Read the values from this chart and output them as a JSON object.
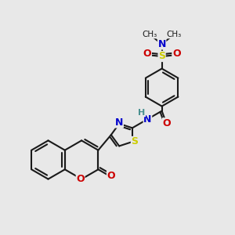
{
  "bg_color": "#e8e8e8",
  "bond_color": "#1a1a1a",
  "N_color": "#0000cc",
  "O_color": "#cc0000",
  "S_color": "#cccc00",
  "H_color": "#4a9090",
  "bond_width": 1.5,
  "font_size": 9,
  "xlim": [
    0,
    10
  ],
  "ylim": [
    0,
    10
  ]
}
